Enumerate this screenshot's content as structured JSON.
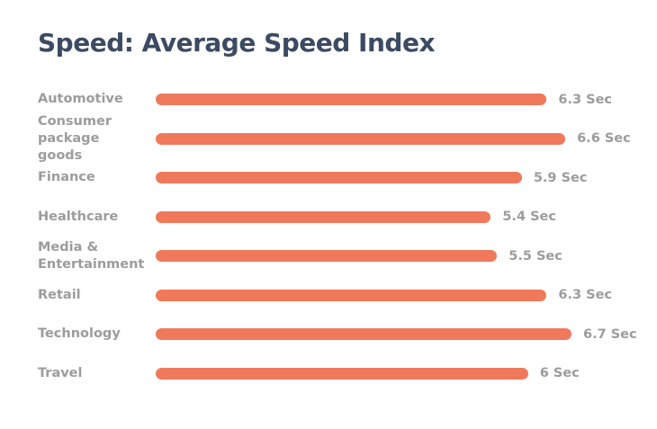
{
  "header": {
    "title": "Speed: Average Speed Index"
  },
  "colors": {
    "bar": "#F0795C",
    "title": "#3C4B63",
    "label": "#9C9C9C",
    "background": "#FFFFFF"
  },
  "chart_data": {
    "type": "bar",
    "orientation": "horizontal",
    "title": "Speed: Average Speed Index",
    "categories": [
      "Automotive",
      "Consumer package goods",
      "Finance",
      "Healthcare",
      "Media & Entertainment",
      "Retail",
      "Technology",
      "Travel"
    ],
    "values": [
      6.3,
      6.6,
      5.9,
      5.4,
      5.5,
      6.3,
      6.7,
      6
    ],
    "value_labels": [
      "6.3 Sec",
      "6.6 Sec",
      "5.9 Sec",
      "5.4 Sec",
      "5.5 Sec",
      "6.3 Sec",
      "6.7 Sec",
      "6 Sec"
    ],
    "unit": "Sec",
    "xlabel": "",
    "ylabel": "",
    "xlim": [
      0,
      6.7
    ],
    "grid": false,
    "legend": false,
    "data_labels_position": "end-of-bar"
  }
}
